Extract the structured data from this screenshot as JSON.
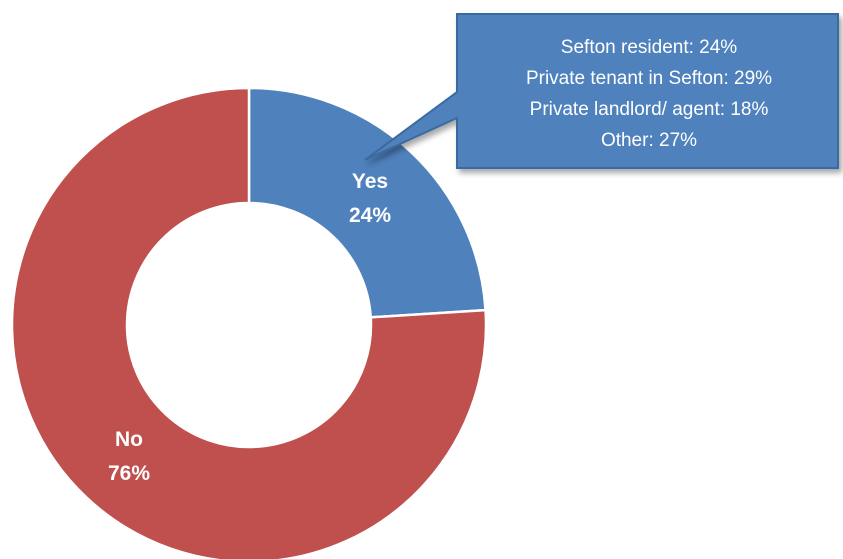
{
  "chart_data": {
    "type": "pie",
    "variant": "donut",
    "slices": [
      {
        "name": "Yes",
        "value": 24,
        "label_value": "24%",
        "color": "#4f81bd"
      },
      {
        "name": "No",
        "value": 76,
        "label_value": "76%",
        "color": "#c0504d"
      }
    ],
    "callout": {
      "attached_to": "Yes",
      "color": "#4f81bd",
      "lines": [
        "Sefton resident: 24%",
        "Private tenant in Sefton: 29%",
        "Private landlord/ agent: 18%",
        "Other: 27%"
      ]
    }
  }
}
